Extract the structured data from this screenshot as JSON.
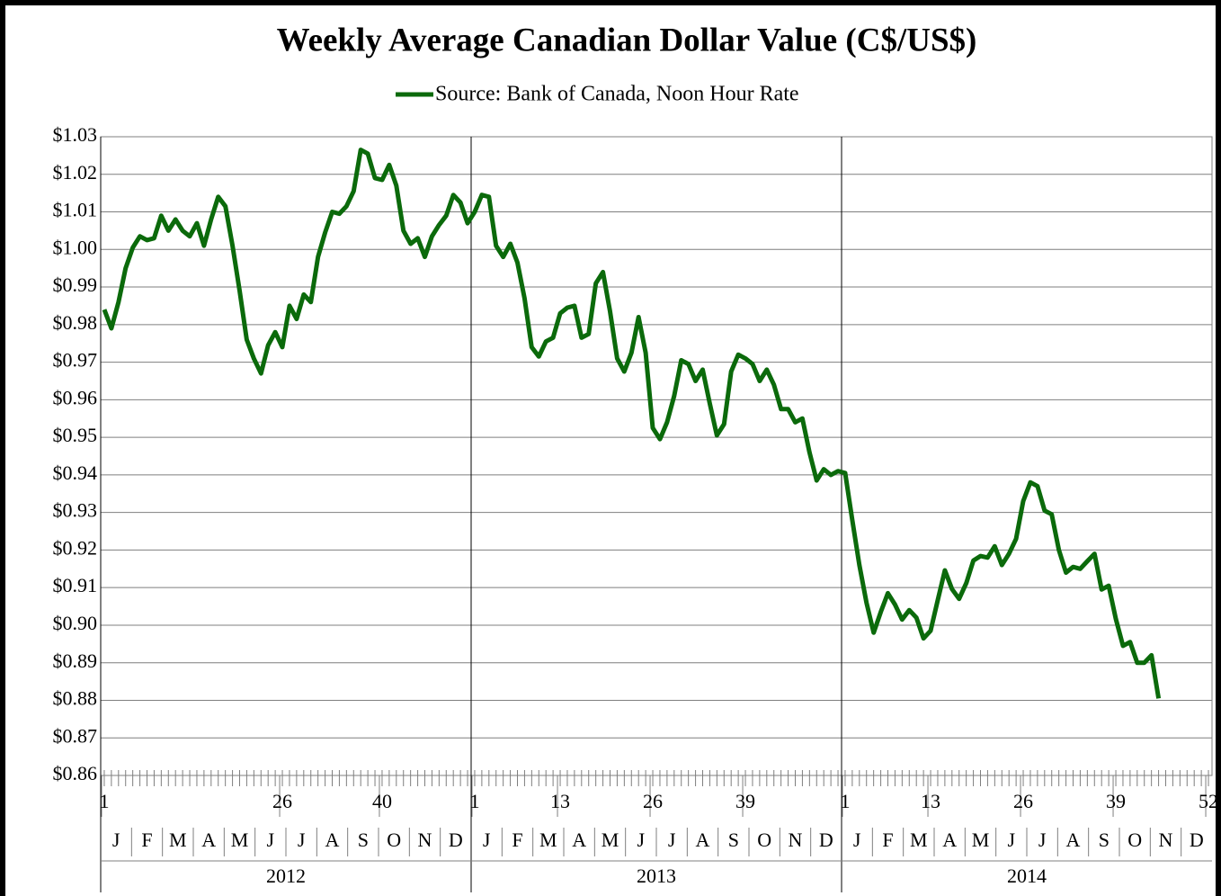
{
  "chart_data": {
    "type": "line",
    "title": "Weekly Average Canadian Dollar Value (C$/US$)",
    "x": [
      1,
      2,
      3,
      4,
      5,
      6,
      7,
      8,
      9,
      10,
      11,
      12,
      13,
      14,
      15,
      16,
      17,
      18,
      19,
      20,
      21,
      22,
      23,
      24,
      25,
      26,
      27,
      28,
      29,
      30,
      31,
      32,
      33,
      34,
      35,
      36,
      37,
      38,
      39,
      40,
      41,
      42,
      43,
      44,
      45,
      46,
      47,
      48,
      49,
      50,
      51,
      52,
      53,
      54,
      55,
      56,
      57,
      58,
      59,
      60,
      61,
      62,
      63,
      64,
      65,
      66,
      67,
      68,
      69,
      70,
      71,
      72,
      73,
      74,
      75,
      76,
      77,
      78,
      79,
      80,
      81,
      82,
      83,
      84,
      85,
      86,
      87,
      88,
      89,
      90,
      91,
      92,
      93,
      94,
      95,
      96,
      97,
      98,
      99,
      100,
      101,
      102,
      103,
      104,
      105,
      106,
      107,
      108,
      109,
      110,
      111,
      112,
      113,
      114,
      115,
      116,
      117,
      118,
      119,
      120,
      121,
      122,
      123,
      124,
      125,
      126,
      127,
      128,
      129,
      130,
      131,
      132,
      133,
      134,
      135,
      136,
      137,
      138,
      139,
      140,
      141,
      142,
      143,
      144,
      145,
      146,
      147,
      148,
      149
    ],
    "series": [
      {
        "name": "Source: Bank of Canada, Noon Hour Rate",
        "color": "#0b6a0b",
        "values": [
          0.984,
          0.979,
          0.986,
          0.995,
          1.0005,
          1.0035,
          1.0025,
          1.003,
          1.009,
          1.005,
          1.008,
          1.005,
          1.0035,
          1.007,
          1.001,
          1.008,
          1.014,
          1.0115,
          1.001,
          0.989,
          0.976,
          0.971,
          0.967,
          0.9745,
          0.978,
          0.974,
          0.985,
          0.9815,
          0.988,
          0.986,
          0.998,
          1.0045,
          1.01,
          1.0095,
          1.0115,
          1.0155,
          1.0265,
          1.0255,
          1.019,
          1.0185,
          1.0225,
          1.017,
          1.005,
          1.0015,
          1.003,
          0.998,
          1.0035,
          1.0065,
          1.009,
          1.0145,
          1.0125,
          1.007,
          1.01,
          1.0145,
          1.014,
          1.001,
          0.998,
          1.0015,
          0.9965,
          0.987,
          0.974,
          0.9715,
          0.9755,
          0.9765,
          0.983,
          0.9845,
          0.985,
          0.9765,
          0.9775,
          0.991,
          0.994,
          0.9835,
          0.971,
          0.9675,
          0.9725,
          0.982,
          0.9725,
          0.9525,
          0.9495,
          0.954,
          0.961,
          0.9705,
          0.9695,
          0.965,
          0.968,
          0.959,
          0.9505,
          0.9535,
          0.9675,
          0.972,
          0.971,
          0.9695,
          0.965,
          0.968,
          0.964,
          0.9575,
          0.9575,
          0.954,
          0.955,
          0.946,
          0.9385,
          0.9415,
          0.94,
          0.941,
          0.9405,
          0.928,
          0.916,
          0.906,
          0.898,
          0.9035,
          0.9085,
          0.9055,
          0.9015,
          0.904,
          0.902,
          0.8965,
          0.8985,
          0.9067,
          0.9146,
          0.9096,
          0.907,
          0.9112,
          0.9172,
          0.9184,
          0.918,
          0.921,
          0.916,
          0.919,
          0.923,
          0.933,
          0.938,
          0.937,
          0.9305,
          0.9295,
          0.92,
          0.914,
          0.9155,
          0.915,
          0.917,
          0.919,
          0.9095,
          0.9105,
          0.9017,
          0.8945,
          0.8955,
          0.89,
          0.89,
          0.892,
          0.8805
        ]
      }
    ],
    "xlim": [
      0.5,
      156.5
    ],
    "xticks": [
      1,
      26,
      40,
      {
        "value": 53,
        "label": "1"
      },
      {
        "value": 65,
        "label": "13"
      },
      {
        "value": 78,
        "label": "26"
      },
      {
        "value": 91,
        "label": "39"
      },
      {
        "value": 105,
        "label": "1"
      },
      {
        "value": 117,
        "label": "13"
      },
      {
        "value": 130,
        "label": "26"
      },
      {
        "value": 143,
        "label": "39"
      },
      {
        "value": 156,
        "label": "52"
      }
    ],
    "x_groups": [
      {
        "label": "2012",
        "months": [
          "J",
          "F",
          "M",
          "A",
          "M",
          "J",
          "J",
          "A",
          "S",
          "O",
          "N",
          "D"
        ]
      },
      {
        "label": "2013",
        "months": [
          "J",
          "F",
          "M",
          "A",
          "M",
          "J",
          "J",
          "A",
          "S",
          "O",
          "N",
          "D"
        ]
      },
      {
        "label": "2014",
        "months": [
          "J",
          "F",
          "M",
          "A",
          "M",
          "J",
          "J",
          "A",
          "S",
          "O",
          "N",
          "D"
        ]
      }
    ],
    "ylim": [
      0.86,
      1.03
    ],
    "yticks": [
      {
        "value": 0.86,
        "label": "$0.86"
      },
      {
        "value": 0.87,
        "label": "$0.87"
      },
      {
        "value": 0.88,
        "label": "$0.88"
      },
      {
        "value": 0.89,
        "label": "$0.89"
      },
      {
        "value": 0.9,
        "label": "$0.90"
      },
      {
        "value": 0.91,
        "label": "$0.91"
      },
      {
        "value": 0.92,
        "label": "$0.92"
      },
      {
        "value": 0.93,
        "label": "$0.93"
      },
      {
        "value": 0.94,
        "label": "$0.94"
      },
      {
        "value": 0.95,
        "label": "$0.95"
      },
      {
        "value": 0.96,
        "label": "$0.96"
      },
      {
        "value": 0.97,
        "label": "$0.97"
      },
      {
        "value": 0.98,
        "label": "$0.98"
      },
      {
        "value": 0.99,
        "label": "$0.99"
      },
      {
        "value": 1.0,
        "label": "$1.00"
      },
      {
        "value": 1.01,
        "label": "$1.01"
      },
      {
        "value": 1.02,
        "label": "$1.02"
      },
      {
        "value": 1.03,
        "label": "$1.03"
      }
    ],
    "grid": true,
    "legend": "top"
  }
}
